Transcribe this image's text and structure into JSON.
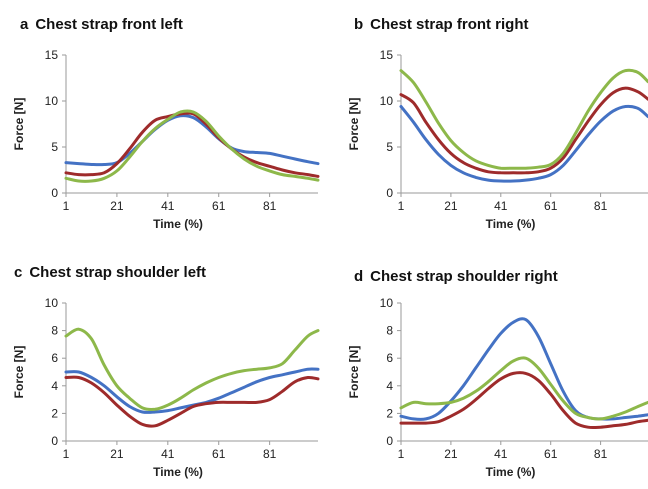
{
  "colors": {
    "blue": "#4472c4",
    "red": "#9e2b2b",
    "green": "#8db84a"
  },
  "chart_data": [
    {
      "type": "line",
      "letter": "a",
      "title": "Chest strap front left",
      "xlabel": "Time (%)",
      "ylabel": "Force [N]",
      "xlim": [
        1,
        100
      ],
      "ylim": [
        0,
        15
      ],
      "xticks": [
        1,
        21,
        41,
        61,
        81
      ],
      "yticks": [
        0,
        5,
        10,
        15
      ],
      "x": [
        1,
        6,
        11,
        16,
        21,
        26,
        31,
        36,
        41,
        46,
        51,
        56,
        61,
        66,
        71,
        76,
        81,
        86,
        91,
        96,
        100
      ],
      "series": [
        {
          "color": "blue",
          "values": [
            3.3,
            3.2,
            3.1,
            3.1,
            3.3,
            4.3,
            5.6,
            6.9,
            7.9,
            8.4,
            8.2,
            7.2,
            5.9,
            4.9,
            4.5,
            4.4,
            4.3,
            4.0,
            3.7,
            3.4,
            3.2
          ]
        },
        {
          "color": "red",
          "values": [
            2.2,
            2.0,
            2.0,
            2.2,
            3.2,
            4.8,
            6.6,
            7.9,
            8.3,
            8.6,
            8.6,
            7.5,
            6.0,
            4.8,
            3.9,
            3.3,
            2.9,
            2.5,
            2.2,
            2.0,
            1.8
          ]
        },
        {
          "color": "green",
          "values": [
            1.6,
            1.3,
            1.3,
            1.6,
            2.4,
            3.9,
            5.6,
            7.0,
            8.0,
            8.8,
            8.8,
            7.8,
            6.2,
            4.8,
            3.7,
            2.9,
            2.4,
            2.0,
            1.8,
            1.6,
            1.4
          ]
        }
      ]
    },
    {
      "type": "line",
      "letter": "b",
      "title": "Chest strap front right",
      "xlabel": "Time (%)",
      "ylabel": "Force [N]",
      "xlim": [
        1,
        100
      ],
      "ylim": [
        0,
        15
      ],
      "xticks": [
        1,
        21,
        41,
        61,
        81
      ],
      "yticks": [
        0,
        5,
        10,
        15
      ],
      "x": [
        1,
        6,
        11,
        16,
        21,
        26,
        31,
        36,
        41,
        46,
        51,
        56,
        61,
        66,
        71,
        76,
        81,
        86,
        91,
        96,
        100
      ],
      "series": [
        {
          "color": "blue",
          "values": [
            9.4,
            7.7,
            5.8,
            4.2,
            3.0,
            2.2,
            1.7,
            1.4,
            1.3,
            1.3,
            1.4,
            1.6,
            2.0,
            3.0,
            4.6,
            6.3,
            7.8,
            8.9,
            9.4,
            9.2,
            8.3
          ]
        },
        {
          "color": "red",
          "values": [
            10.7,
            9.8,
            7.7,
            5.8,
            4.3,
            3.3,
            2.7,
            2.3,
            2.2,
            2.2,
            2.2,
            2.3,
            2.7,
            3.8,
            5.8,
            7.8,
            9.6,
            10.9,
            11.4,
            11.0,
            10.2
          ]
        },
        {
          "color": "green",
          "values": [
            13.3,
            12.0,
            9.9,
            7.6,
            5.7,
            4.4,
            3.5,
            3.0,
            2.7,
            2.7,
            2.7,
            2.8,
            3.1,
            4.3,
            6.5,
            8.9,
            10.9,
            12.5,
            13.3,
            13.1,
            12.1
          ]
        }
      ]
    },
    {
      "type": "line",
      "letter": "c",
      "title": "Chest strap shoulder left",
      "xlabel": "Time (%)",
      "ylabel": "Force [N]",
      "xlim": [
        1,
        100
      ],
      "ylim": [
        0,
        10
      ],
      "xticks": [
        1,
        21,
        41,
        61,
        81
      ],
      "yticks": [
        0,
        2,
        4,
        6,
        8,
        10
      ],
      "x": [
        1,
        6,
        11,
        16,
        21,
        26,
        31,
        36,
        41,
        46,
        51,
        56,
        61,
        66,
        71,
        76,
        81,
        86,
        91,
        96,
        100
      ],
      "series": [
        {
          "color": "blue",
          "values": [
            5.0,
            5.0,
            4.6,
            4.0,
            3.2,
            2.5,
            2.1,
            2.1,
            2.2,
            2.4,
            2.6,
            2.8,
            3.1,
            3.5,
            3.9,
            4.3,
            4.6,
            4.8,
            5.0,
            5.2,
            5.2
          ]
        },
        {
          "color": "red",
          "values": [
            4.6,
            4.6,
            4.2,
            3.5,
            2.6,
            1.8,
            1.2,
            1.1,
            1.5,
            2.0,
            2.5,
            2.7,
            2.8,
            2.8,
            2.8,
            2.8,
            3.0,
            3.6,
            4.3,
            4.6,
            4.5
          ]
        },
        {
          "color": "green",
          "values": [
            7.6,
            8.1,
            7.4,
            5.5,
            4.0,
            3.1,
            2.4,
            2.3,
            2.6,
            3.1,
            3.7,
            4.2,
            4.6,
            4.9,
            5.1,
            5.2,
            5.3,
            5.6,
            6.6,
            7.6,
            8.0
          ]
        }
      ]
    },
    {
      "type": "line",
      "letter": "d",
      "title": "Chest strap shoulder right",
      "xlabel": "Time (%)",
      "ylabel": "Force [N]",
      "xlim": [
        1,
        100
      ],
      "ylim": [
        0,
        10
      ],
      "xticks": [
        1,
        21,
        41,
        61,
        81
      ],
      "yticks": [
        0,
        2,
        4,
        6,
        8,
        10
      ],
      "x": [
        1,
        6,
        11,
        16,
        21,
        26,
        31,
        36,
        41,
        46,
        51,
        56,
        61,
        66,
        71,
        76,
        81,
        86,
        91,
        96,
        100
      ],
      "series": [
        {
          "color": "blue",
          "values": [
            1.8,
            1.6,
            1.6,
            2.0,
            2.9,
            4.0,
            5.3,
            6.6,
            7.8,
            8.6,
            8.8,
            7.6,
            5.6,
            3.6,
            2.2,
            1.7,
            1.6,
            1.6,
            1.7,
            1.8,
            1.9
          ]
        },
        {
          "color": "red",
          "values": [
            1.3,
            1.3,
            1.3,
            1.4,
            1.8,
            2.3,
            3.0,
            3.8,
            4.5,
            4.9,
            4.9,
            4.4,
            3.4,
            2.2,
            1.3,
            1.0,
            1.0,
            1.1,
            1.2,
            1.4,
            1.5
          ]
        },
        {
          "color": "green",
          "values": [
            2.4,
            2.8,
            2.7,
            2.7,
            2.8,
            3.1,
            3.6,
            4.3,
            5.1,
            5.8,
            6.0,
            5.3,
            4.1,
            2.9,
            2.0,
            1.7,
            1.6,
            1.8,
            2.1,
            2.5,
            2.8
          ]
        }
      ]
    }
  ]
}
